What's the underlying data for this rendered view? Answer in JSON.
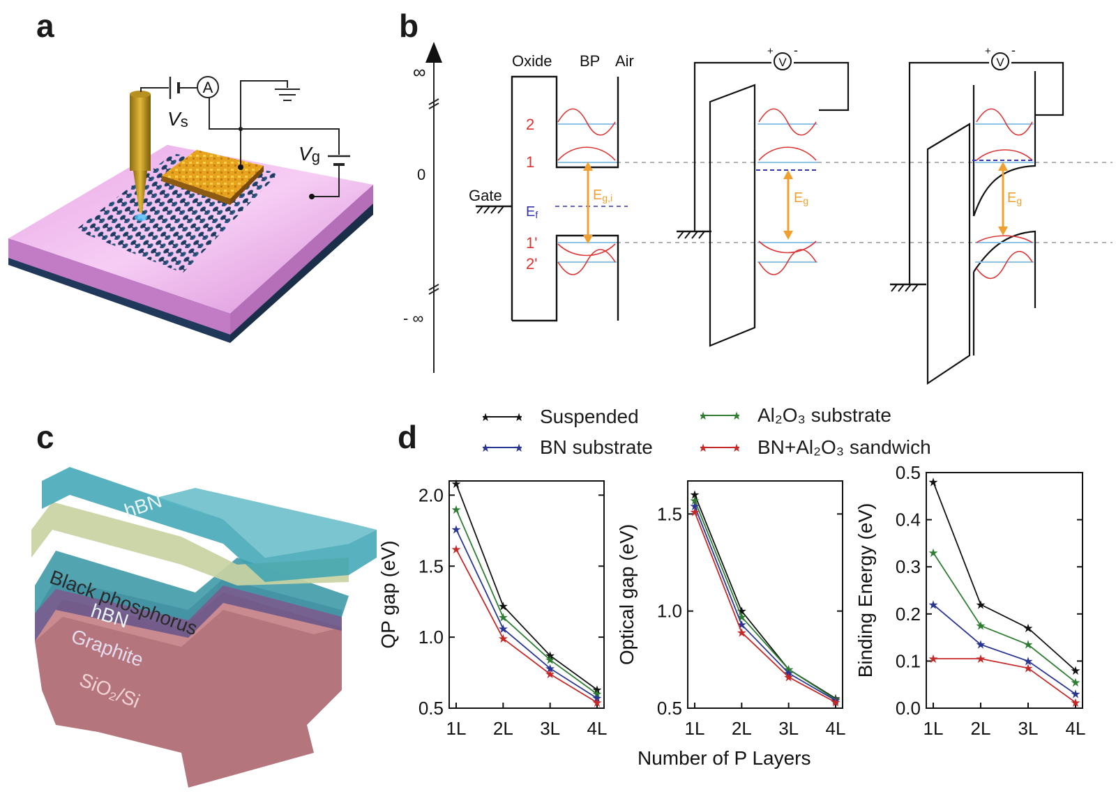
{
  "panels": {
    "a": "a",
    "b": "b",
    "c": "c",
    "d": "d"
  },
  "panel_a": {
    "vs_label": "V",
    "vs_sub": "s",
    "vg_label": "V",
    "vg_sub": "g",
    "ammeter": "A"
  },
  "panel_b": {
    "axis_top": "∞",
    "axis_zero": "0",
    "axis_bottom": "- ∞",
    "oxide": "Oxide",
    "bp": "BP",
    "air": "Air",
    "gate": "Gate",
    "ef": "E",
    "ef_sub": "f",
    "level_2": "2",
    "level_1": "1",
    "level_1p": "1'",
    "level_2p": "2'",
    "eg_i": "E",
    "eg_i_sub": "g,i",
    "eg": "E",
    "eg_sub": "g",
    "voltmeter": "V",
    "plus": "+",
    "minus": "-",
    "colors": {
      "levels": "#dd3333",
      "lines": "#8ec5e6",
      "arrow": "#f0a030",
      "fermi": "#3333aa"
    }
  },
  "panel_c": {
    "layers": [
      "hBN",
      "Black phosphorus",
      "hBN",
      "Graphite",
      "SiO₂/Si"
    ]
  },
  "panel_d": {
    "legend": [
      {
        "name": "Suspended",
        "color": "#111111"
      },
      {
        "name": "Al₂O₃ substrate",
        "color": "#2e7d32"
      },
      {
        "name": "BN substrate",
        "color": "#283593"
      },
      {
        "name": "BN+Al₂O₃ sandwich",
        "color": "#c62828"
      }
    ],
    "xlabel": "Number of P Layers"
  },
  "chart_data": [
    {
      "type": "line",
      "categories": [
        "1L",
        "2L",
        "3L",
        "4L"
      ],
      "ylabel": "QP gap (eV)",
      "ylim": [
        0.5,
        2.1
      ],
      "yticks": [
        "0.5",
        "1.0",
        "1.5",
        "2.0"
      ],
      "series": [
        {
          "name": "Suspended",
          "values": [
            2.08,
            1.22,
            0.87,
            0.63
          ]
        },
        {
          "name": "Al₂O₃ substrate",
          "values": [
            1.9,
            1.14,
            0.84,
            0.6
          ]
        },
        {
          "name": "BN substrate",
          "values": [
            1.76,
            1.06,
            0.78,
            0.57
          ]
        },
        {
          "name": "BN+Al₂O₃ sandwich",
          "values": [
            1.62,
            0.99,
            0.74,
            0.54
          ]
        }
      ]
    },
    {
      "type": "line",
      "categories": [
        "1L",
        "2L",
        "3L",
        "4L"
      ],
      "ylabel": "Optical gap (eV)",
      "ylim": [
        0.5,
        1.67
      ],
      "yticks": [
        "0.5",
        "1.0",
        "1.5"
      ],
      "series": [
        {
          "name": "Suspended",
          "values": [
            1.6,
            1.0,
            0.7,
            0.55
          ]
        },
        {
          "name": "Al₂O₃ substrate",
          "values": [
            1.57,
            0.97,
            0.7,
            0.545
          ]
        },
        {
          "name": "BN substrate",
          "values": [
            1.54,
            0.93,
            0.68,
            0.54
          ]
        },
        {
          "name": "BN+Al₂O₃ sandwich",
          "values": [
            1.51,
            0.89,
            0.66,
            0.53
          ]
        }
      ]
    },
    {
      "type": "line",
      "categories": [
        "1L",
        "2L",
        "3L",
        "4L"
      ],
      "ylabel": "Binding Energy (eV)",
      "ylim": [
        0.0,
        0.5
      ],
      "yticks": [
        "0.0",
        "0.1",
        "0.2",
        "0.3",
        "0.4",
        "0.5"
      ],
      "series": [
        {
          "name": "Suspended",
          "values": [
            0.48,
            0.22,
            0.17,
            0.08
          ]
        },
        {
          "name": "Al₂O₃ substrate",
          "values": [
            0.33,
            0.175,
            0.135,
            0.055
          ]
        },
        {
          "name": "BN substrate",
          "values": [
            0.22,
            0.135,
            0.1,
            0.03
          ]
        },
        {
          "name": "BN+Al₂O₃ sandwich",
          "values": [
            0.105,
            0.105,
            0.085,
            0.012
          ]
        }
      ]
    }
  ]
}
